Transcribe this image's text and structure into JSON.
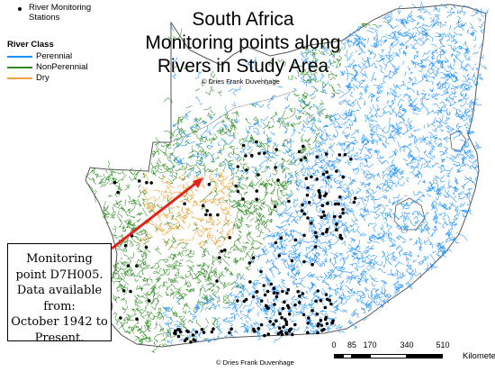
{
  "title": {
    "line1": "South Africa",
    "line2": "Monitoring points along",
    "line3": "Rivers in Study Area"
  },
  "copyright_top": "© Dries Frank Duvenhage",
  "copyright_bottom": "© Dries Frank Duvenhage",
  "legend": {
    "stations_label_line1": "River Monitoring",
    "stations_label_line2": "Stations",
    "river_class_heading": "River Class",
    "classes": [
      {
        "label": "Perennial",
        "color": "#1e90ff"
      },
      {
        "label": "NonPerennial",
        "color": "#2e8b22"
      },
      {
        "label": "Dry",
        "color": "#f0a33c"
      }
    ]
  },
  "callout": {
    "line1": "Monitoring",
    "line2": "point D7H005.",
    "line3": "Data available",
    "line4": "from:",
    "line5": "October 1942 to",
    "line6": "Present."
  },
  "scale": {
    "ticks": [
      "0",
      "85",
      "170",
      "340",
      "510"
    ],
    "units": "Kilometers"
  },
  "colors": {
    "perennial": "#1e90ff",
    "nonperennial": "#2e8b22",
    "dry": "#f0a33c",
    "station": "#000000",
    "arrow": "#e0241c",
    "border": "#555555"
  }
}
